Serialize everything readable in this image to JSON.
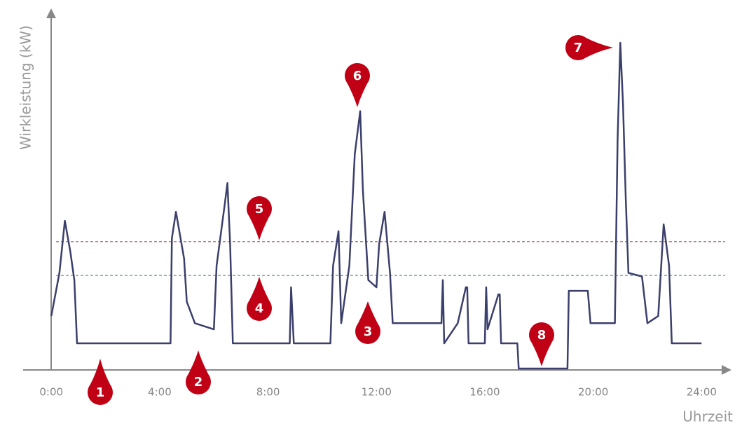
{
  "chart_data": {
    "type": "line",
    "y_label": "Wirkleistung (kW)",
    "x_label": "Uhrzeit",
    "x": [
      0,
      0.3,
      0.5,
      0.7,
      0.85,
      0.95,
      1.5,
      2.5,
      3.5,
      4.4,
      4.45,
      4.6,
      4.9,
      5.0,
      5.3,
      6.0,
      6.1,
      6.4,
      6.5,
      6.6,
      6.7,
      7.5,
      8.8,
      8.85,
      8.95,
      9.5,
      10.3,
      10.4,
      10.6,
      10.7,
      11.0,
      11.2,
      11.4,
      11.5,
      11.7,
      12.0,
      12.1,
      12.3,
      12.5,
      12.6,
      13.5,
      14.4,
      14.45,
      14.5,
      15.0,
      15.3,
      15.35,
      15.4,
      16.0,
      16.05,
      16.1,
      16.5,
      16.55,
      16.6,
      17.2,
      17.25,
      19.05,
      19.1,
      19.8,
      19.9,
      20.8,
      20.9,
      21.0,
      21.1,
      21.2,
      21.3,
      21.8,
      22.0,
      22.4,
      22.6,
      22.8,
      22.9,
      24.0
    ],
    "series": [
      {
        "color": "#3b3f6b",
        "values": [
          15,
          27,
          41.5,
          33,
          25,
          7.4,
          7.4,
          7.4,
          7.4,
          7.4,
          36.6,
          44,
          31,
          19,
          13,
          11.3,
          29,
          46,
          52,
          35,
          7.4,
          7.4,
          7.4,
          23,
          7.4,
          7.4,
          7.4,
          29,
          38.6,
          13,
          29,
          60,
          72,
          50,
          25,
          23,
          35,
          44,
          27,
          13,
          13,
          13,
          25,
          7.4,
          13,
          23,
          23,
          7.4,
          7.4,
          23,
          11.3,
          21,
          21,
          7.4,
          7.4,
          0.4,
          0.4,
          22,
          22,
          13,
          13,
          64,
          91,
          74,
          48,
          27,
          26,
          13,
          15,
          40.5,
          29,
          7.4,
          7.4
        ]
      }
    ],
    "reference_lines": [
      {
        "value": 35.7,
        "color": "#8a2a4a"
      },
      {
        "value": 26.3,
        "color": "#3f7f7f"
      }
    ],
    "annotations": [
      "1",
      "2",
      "3",
      "4",
      "5",
      "6",
      "7",
      "8"
    ],
    "marker_color": "#c00014",
    "xlim": [
      -1.04,
      25
    ],
    "ylim": [
      0,
      100
    ],
    "xticks": [
      {
        "value": 0,
        "label": "0:00"
      },
      {
        "value": 4,
        "label": "4:00"
      },
      {
        "value": 8,
        "label": "8:00"
      },
      {
        "value": 12,
        "label": "12:00"
      },
      {
        "value": 16,
        "label": "16:00"
      },
      {
        "value": 20,
        "label": "20:00"
      },
      {
        "value": 24,
        "label": "24:00"
      }
    ]
  }
}
